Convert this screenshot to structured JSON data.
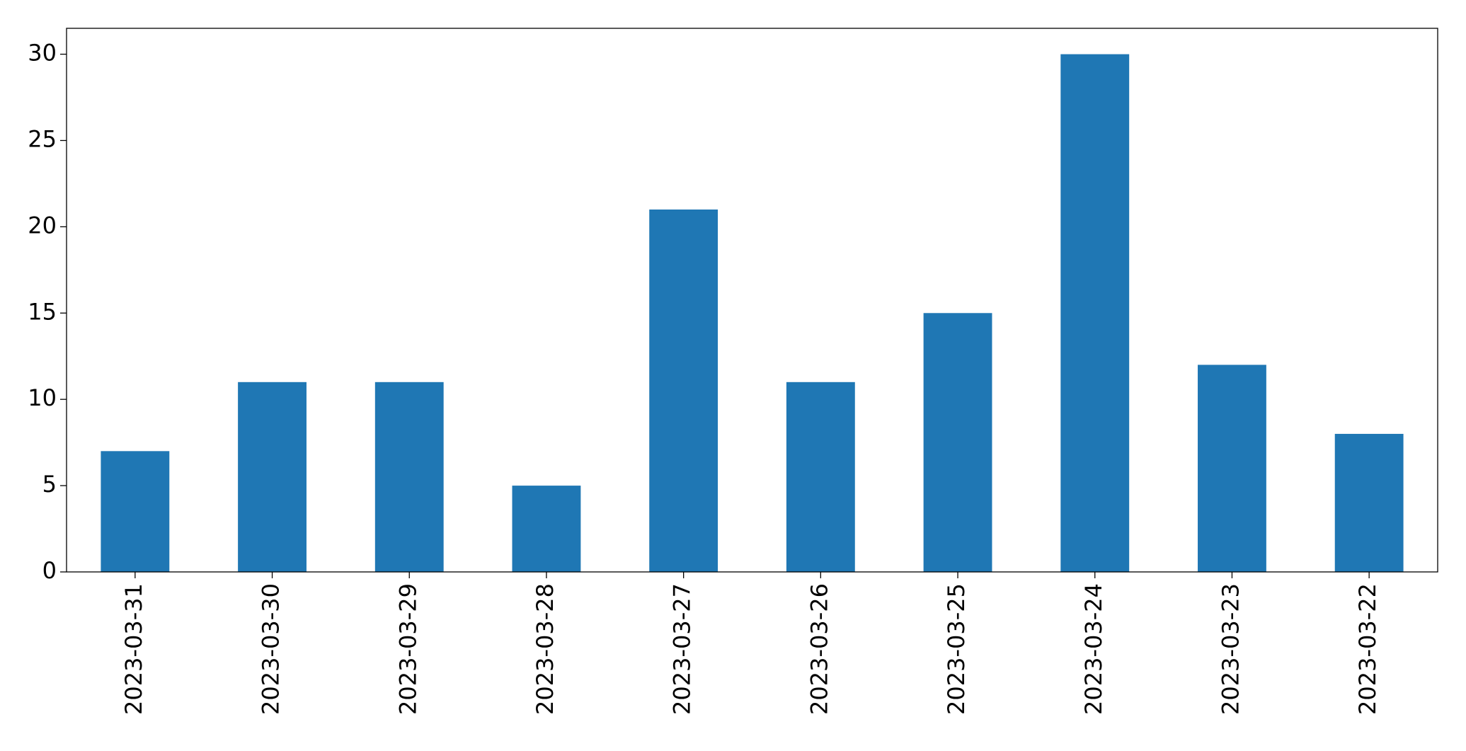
{
  "chart_data": {
    "type": "bar",
    "categories": [
      "2023-03-31",
      "2023-03-30",
      "2023-03-29",
      "2023-03-28",
      "2023-03-27",
      "2023-03-26",
      "2023-03-25",
      "2023-03-24",
      "2023-03-23",
      "2023-03-22"
    ],
    "values": [
      7,
      11,
      11,
      5,
      21,
      11,
      15,
      30,
      12,
      8
    ],
    "color": "#1f77b4",
    "ylim": [
      0,
      31.5
    ],
    "yticks": [
      0,
      5,
      10,
      15,
      20,
      25,
      30
    ],
    "grid": false
  }
}
